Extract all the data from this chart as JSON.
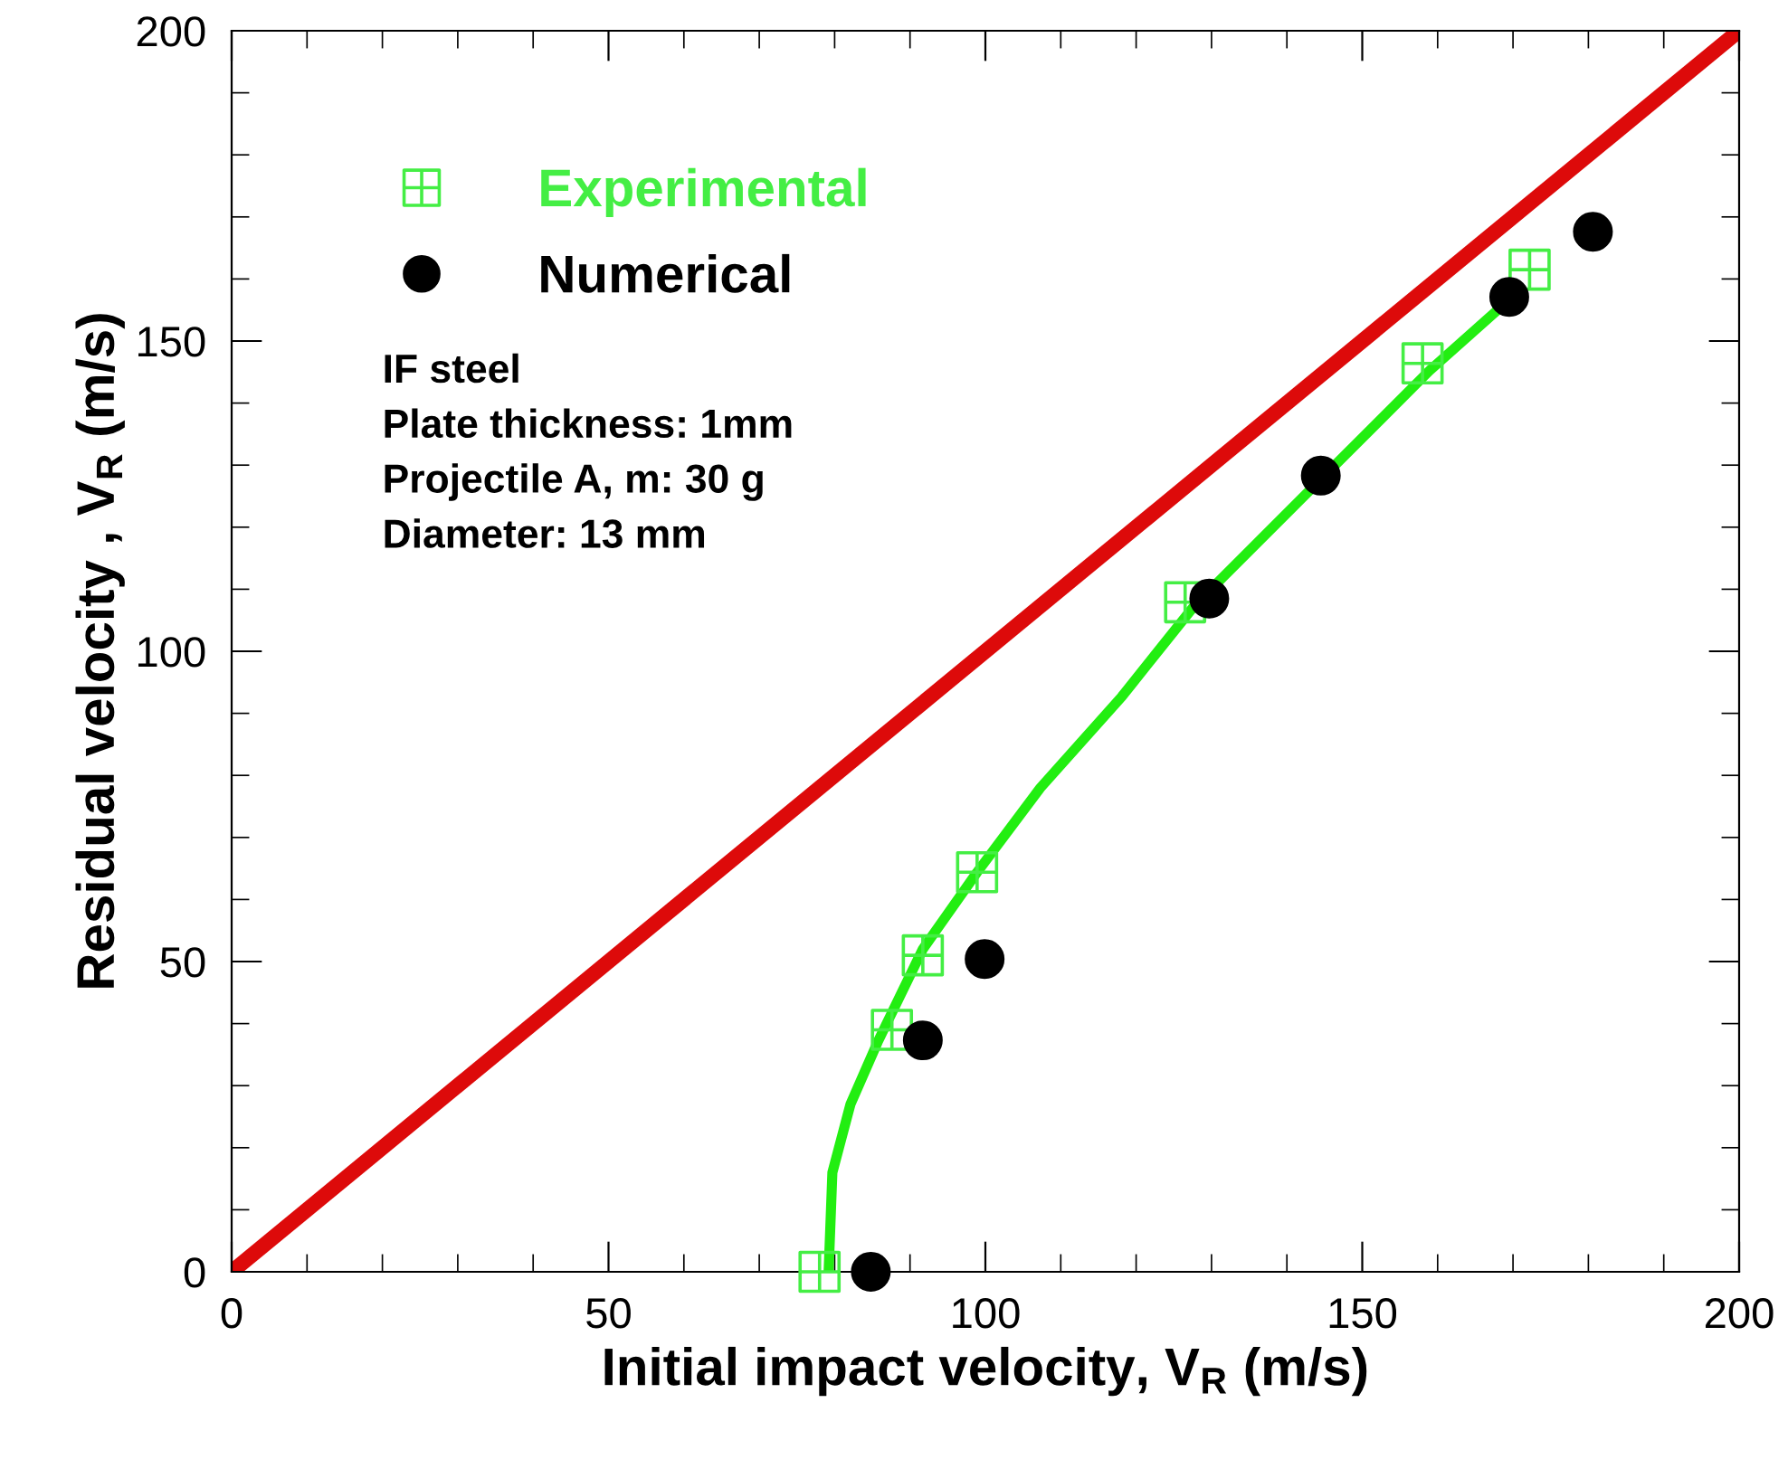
{
  "chart_data": {
    "type": "scatter",
    "xlabel": "Initial impact velocity, V$_{R}$ (m/s)",
    "ylabel": "Residual velocity , V$_{R}$ (m/s)",
    "xlim": [
      0,
      200
    ],
    "ylim": [
      0,
      200
    ],
    "xticks": [
      0,
      50,
      100,
      150,
      200
    ],
    "yticks": [
      0,
      50,
      100,
      150,
      200
    ],
    "grid": false,
    "legend": "top left",
    "annotations": [
      "IF steel\nPlate thickness: 1mm\nProjectile A, m: 30 g\nDiameter: 13 mm"
    ],
    "series": [
      {
        "type": "line",
        "color": "#dd0a0a",
        "x": [
          0,
          200
        ],
        "values": [
          0,
          200
        ],
        "marker": "none"
      },
      {
        "type": "line",
        "color": "#22ee11",
        "x": [
          79.2,
          79.7,
          82.1,
          85.7,
          91.7,
          98.9,
          107.3,
          118.1,
          127.7,
          142.1,
          158.9,
          171
        ],
        "values": [
          0,
          16,
          27,
          37,
          52,
          64.4,
          78,
          92.7,
          107.3,
          124.8,
          145.2,
          158.3
        ],
        "marker": "none"
      },
      {
        "type": "scatter",
        "name": "Experimental",
        "color": "#44ee44",
        "marker": "cross",
        "x": [
          78.0,
          87.6,
          91.7,
          98.9,
          126.5,
          158,
          172.2
        ],
        "values": [
          0,
          39,
          51,
          64.4,
          107.9,
          146.4,
          161.5
        ]
      },
      {
        "type": "scatter",
        "name": "Numerical",
        "color": "#000000",
        "marker": "circle",
        "x": [
          84.8,
          91.7,
          99.9,
          129.7,
          144.5,
          169.5,
          180.6
        ],
        "values": [
          0,
          37.3,
          50.4,
          108.5,
          128.3,
          157.1,
          167.6
        ]
      }
    ]
  }
}
